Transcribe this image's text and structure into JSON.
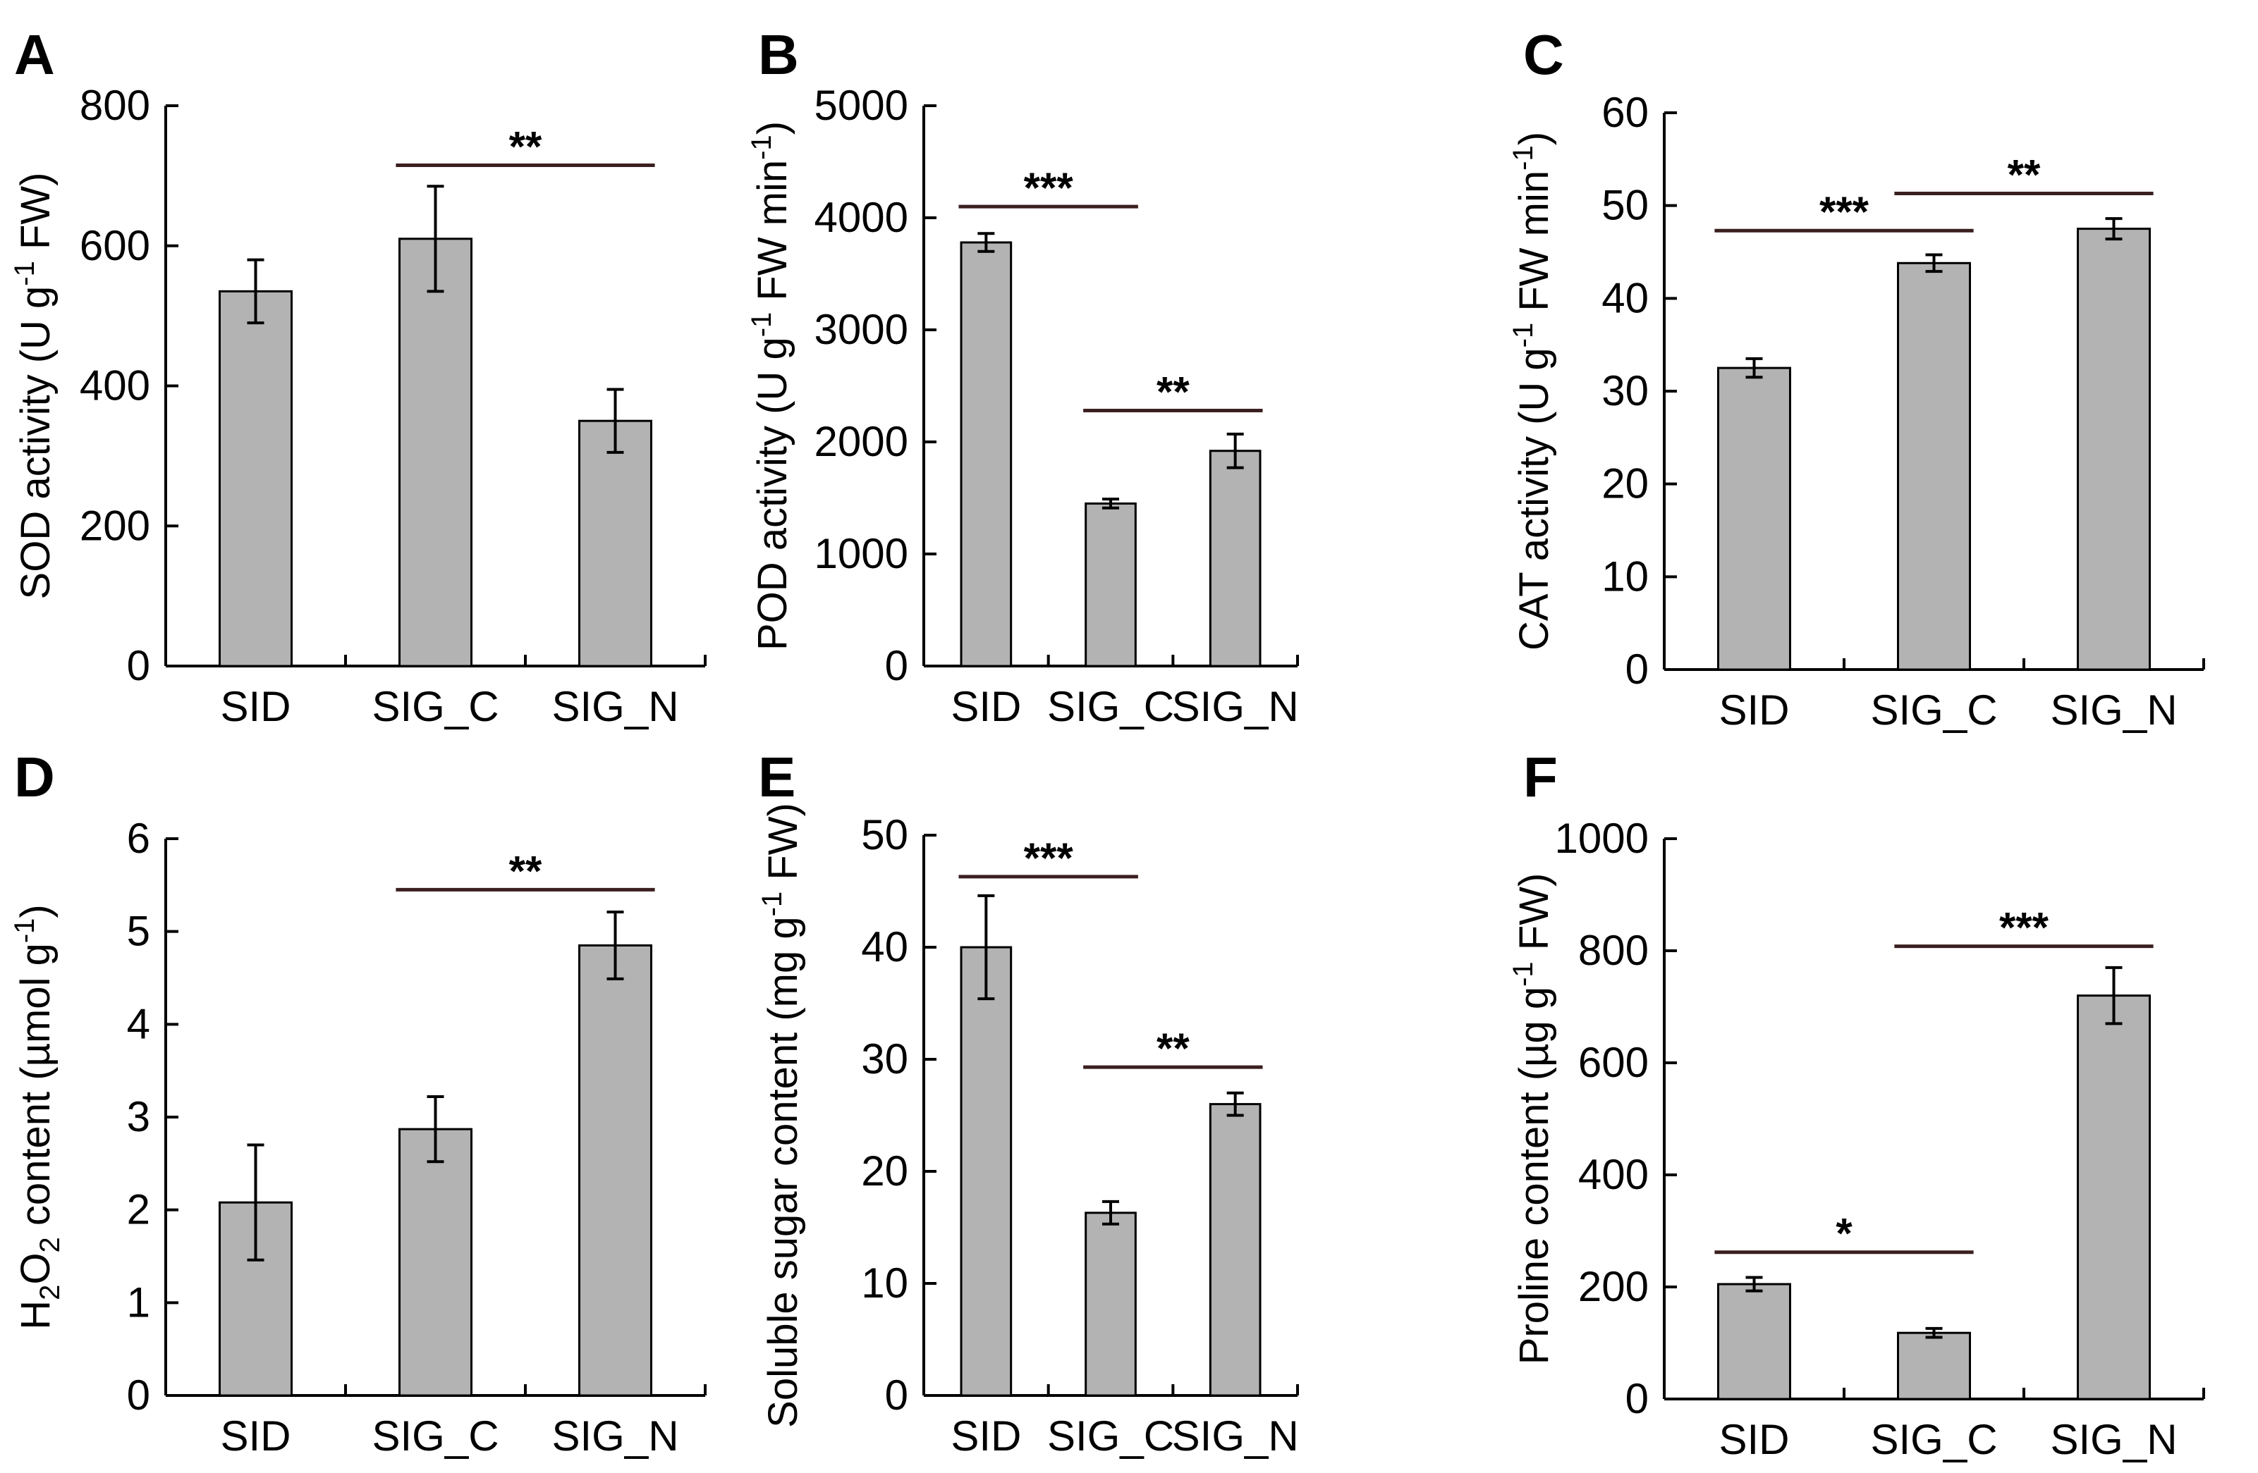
{
  "bar_color": "#b3b3b3",
  "line_color": "#000000",
  "sig_line_color": "#3b1f1f",
  "chart_data": [
    {
      "letter": "A",
      "type": "bar",
      "categories": [
        "SID",
        "SIG_C",
        "SIG_N"
      ],
      "values": [
        535,
        610,
        350
      ],
      "errors": [
        45,
        75,
        45
      ],
      "ylim": [
        0,
        800
      ],
      "yticks": [
        "0",
        "200",
        "400",
        "600",
        "800"
      ],
      "ylabel": {
        "pre": "SOD activity (U g",
        "sup": "-1",
        "post": " FW)"
      },
      "significance": [
        {
          "from": 1,
          "to": 2,
          "y": 715,
          "label": "**"
        }
      ]
    },
    {
      "letter": "B",
      "type": "bar",
      "categories": [
        "SID",
        "SIG_C",
        "SIG_N"
      ],
      "values": [
        3780,
        1450,
        1920
      ],
      "errors": [
        80,
        40,
        150
      ],
      "ylim": [
        0,
        5000
      ],
      "yticks": [
        "0",
        "1000",
        "2000",
        "3000",
        "4000",
        "5000"
      ],
      "ylabel": {
        "pre": "POD activity (U g",
        "sup": "-1",
        "mid": " FW min",
        "sup2": "-1",
        "post": ")"
      },
      "significance": [
        {
          "from": 0,
          "to": 1,
          "y": 4100,
          "label": "***"
        },
        {
          "from": 1,
          "to": 2,
          "y": 2280,
          "label": "**"
        }
      ]
    },
    {
      "letter": "C",
      "type": "bar",
      "categories": [
        "SID",
        "SIG_C",
        "SIG_N"
      ],
      "values": [
        32.5,
        43.8,
        47.5
      ],
      "errors": [
        1.0,
        0.9,
        1.1
      ],
      "ylim": [
        0,
        60
      ],
      "yticks": [
        "0",
        "10",
        "20",
        "30",
        "40",
        "50",
        "60"
      ],
      "ylabel": {
        "pre": "CAT activity (U g",
        "sup": "-1",
        "mid": " FW min",
        "sup2": "-1",
        "post": ")"
      },
      "significance": [
        {
          "from": 0,
          "to": 1,
          "y": 47.3,
          "label": "***"
        },
        {
          "from": 1,
          "to": 2,
          "y": 51.3,
          "label": "**"
        }
      ]
    },
    {
      "letter": "D",
      "type": "bar",
      "categories": [
        "SID",
        "SIG_C",
        "SIG_N"
      ],
      "values": [
        2.08,
        2.87,
        4.85
      ],
      "errors": [
        0.62,
        0.35,
        0.36
      ],
      "ylim": [
        0,
        6
      ],
      "yticks": [
        "0",
        "1",
        "2",
        "3",
        "4",
        "5",
        "6"
      ],
      "ylabel": {
        "h2o2": true,
        "pre": "H",
        "sub": "2",
        "mid": "O",
        "sub2": "2",
        "post": " content (µmol g",
        "sup": "-1",
        "end": ")"
      },
      "significance": [
        {
          "from": 1,
          "to": 2,
          "y": 5.45,
          "label": "**"
        }
      ]
    },
    {
      "letter": "E",
      "type": "bar",
      "categories": [
        "SID",
        "SIG_C",
        "SIG_N"
      ],
      "values": [
        40,
        16.3,
        26
      ],
      "errors": [
        4.6,
        1.0,
        1.0
      ],
      "ylim": [
        0,
        50
      ],
      "yticks": [
        "0",
        "10",
        "20",
        "30",
        "40",
        "50"
      ],
      "ylabel": {
        "pre": "Soluble sugar content (mg g",
        "sup": "-1",
        "post": " FW)"
      },
      "significance": [
        {
          "from": 0,
          "to": 1,
          "y": 46.3,
          "label": "***"
        },
        {
          "from": 1,
          "to": 2,
          "y": 29.3,
          "label": "**"
        }
      ]
    },
    {
      "letter": "F",
      "type": "bar",
      "categories": [
        "SID",
        "SIG_C",
        "SIG_N"
      ],
      "values": [
        205,
        118,
        720
      ],
      "errors": [
        12,
        8,
        50
      ],
      "ylim": [
        0,
        1000
      ],
      "yticks": [
        "0",
        "200",
        "400",
        "600",
        "800",
        "1000"
      ],
      "ylabel": {
        "pre": "Proline content (µg g",
        "sup": "-1",
        "post": " FW)"
      },
      "significance": [
        {
          "from": 0,
          "to": 1,
          "y": 262,
          "label": "*"
        },
        {
          "from": 1,
          "to": 2,
          "y": 808,
          "label": "***"
        }
      ]
    }
  ]
}
